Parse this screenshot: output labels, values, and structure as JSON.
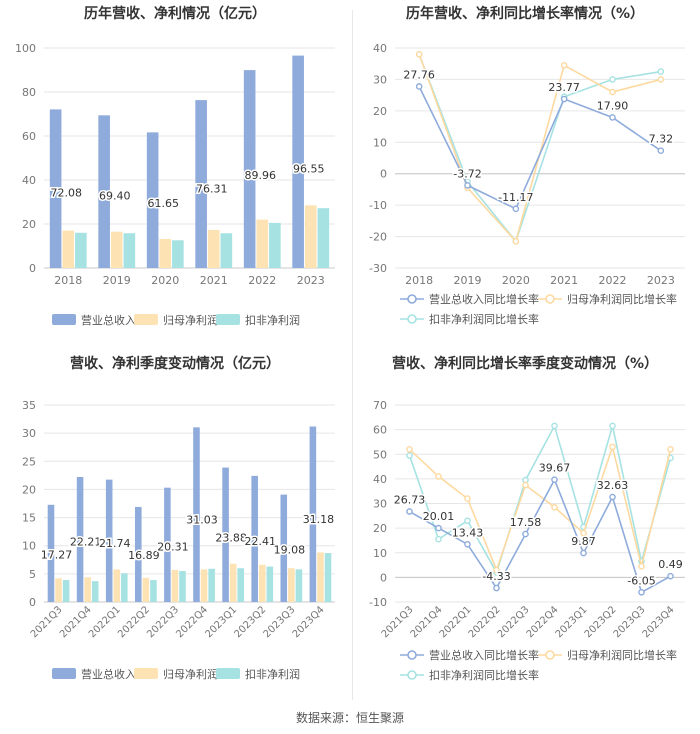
{
  "source": "数据来源：恒生聚源",
  "chart_data": [
    {
      "id": "annual_bar",
      "type": "bar",
      "title": "历年营收、净利情况（亿元）",
      "categories": [
        "2018",
        "2019",
        "2020",
        "2021",
        "2022",
        "2023"
      ],
      "ylim": [
        0,
        100
      ],
      "yticks": [
        0,
        20,
        40,
        60,
        80,
        100
      ],
      "label_series": 0,
      "series": [
        {
          "name": "营业总收入",
          "color": "#8eabdb",
          "values": [
            72.08,
            69.4,
            61.65,
            76.31,
            89.96,
            96.55
          ]
        },
        {
          "name": "归母净利润",
          "color": "#fde3b4",
          "values": [
            17.0,
            16.5,
            13.2,
            17.3,
            22.0,
            28.5
          ]
        },
        {
          "name": "扣非净利润",
          "color": "#a6e2e2",
          "values": [
            16.0,
            15.8,
            12.6,
            15.8,
            20.5,
            27.2
          ]
        }
      ],
      "data_labels": [
        "72.08",
        "69.40",
        "61.65",
        "76.31",
        "89.96",
        "96.55"
      ]
    },
    {
      "id": "annual_line",
      "type": "line",
      "title": "历年营收、净利同比增长率情况（%）",
      "categories": [
        "2018",
        "2019",
        "2020",
        "2021",
        "2022",
        "2023"
      ],
      "ylim": [
        -30,
        40
      ],
      "yticks": [
        -30,
        -20,
        -10,
        0,
        10,
        20,
        30,
        40
      ],
      "label_series": 0,
      "series": [
        {
          "name": "营业总收入同比增长率",
          "color": "#8eabdb",
          "values": [
            27.76,
            -3.72,
            -11.17,
            23.77,
            17.9,
            7.32
          ]
        },
        {
          "name": "归母净利润同比增长率",
          "color": "#fdd9a0",
          "values": [
            38,
            -4.5,
            -21.5,
            34.5,
            26,
            30
          ]
        },
        {
          "name": "扣非净利润同比增长率",
          "color": "#a6e2e2",
          "values": [
            38,
            -2.5,
            -21.5,
            24.5,
            30,
            32.5
          ]
        }
      ],
      "data_labels": [
        "27.76",
        "-3.72",
        "-11.17",
        "23.77",
        "17.90",
        "7.32"
      ]
    },
    {
      "id": "quarter_bar",
      "type": "bar",
      "title": "营收、净利季度变动情况（亿元）",
      "categories": [
        "2021Q3",
        "2021Q4",
        "2022Q1",
        "2022Q2",
        "2022Q3",
        "2022Q4",
        "2023Q1",
        "2023Q2",
        "2023Q3",
        "2023Q4"
      ],
      "ylim": [
        0,
        35
      ],
      "yticks": [
        0,
        5,
        10,
        15,
        20,
        25,
        30,
        35
      ],
      "label_series": 0,
      "series": [
        {
          "name": "营业总收入",
          "color": "#8eabdb",
          "values": [
            17.27,
            22.21,
            21.74,
            16.89,
            20.31,
            31.03,
            23.88,
            22.41,
            19.08,
            31.18
          ]
        },
        {
          "name": "归母净利润",
          "color": "#fde3b4",
          "values": [
            4.2,
            4.4,
            5.8,
            4.3,
            5.7,
            5.8,
            6.8,
            6.6,
            6.0,
            8.8
          ]
        },
        {
          "name": "扣非净利润",
          "color": "#a6e2e2",
          "values": [
            3.9,
            3.7,
            5.1,
            3.9,
            5.5,
            5.9,
            6.0,
            6.3,
            5.8,
            8.7
          ]
        }
      ],
      "data_labels": [
        "17.27",
        "22.21",
        "21.74",
        "16.89",
        "20.31",
        "31.03",
        "23.88",
        "22.41",
        "19.08",
        "31.18"
      ]
    },
    {
      "id": "quarter_line",
      "type": "line",
      "title": "营收、净利同比增长率季度变动情况（%）",
      "categories": [
        "2021Q3",
        "2021Q4",
        "2022Q1",
        "2022Q2",
        "2022Q3",
        "2022Q4",
        "2023Q1",
        "2023Q2",
        "2023Q3",
        "2023Q4"
      ],
      "ylim": [
        -10,
        70
      ],
      "yticks": [
        -10,
        0,
        10,
        20,
        30,
        40,
        50,
        60,
        70
      ],
      "label_series": 0,
      "series": [
        {
          "name": "营业总收入同比增长率",
          "color": "#8eabdb",
          "values": [
            26.73,
            20.01,
            13.43,
            -4.33,
            17.58,
            39.67,
            9.87,
            32.63,
            -6.05,
            0.49
          ]
        },
        {
          "name": "归母净利润同比增长率",
          "color": "#fdd9a0",
          "values": [
            52,
            41,
            32,
            3,
            37.5,
            28.5,
            18,
            53,
            4.5,
            52
          ]
        },
        {
          "name": "扣非净利润同比增长率",
          "color": "#a6e2e2",
          "values": [
            49.5,
            15.5,
            23,
            2,
            39.5,
            61.5,
            20.5,
            61.5,
            6.5,
            48.5
          ]
        }
      ],
      "data_labels": [
        "26.73",
        "20.01",
        "13.43",
        "-4.33",
        "17.58",
        "39.67",
        "9.87",
        "32.63",
        "-6.05",
        "0.49"
      ]
    }
  ]
}
